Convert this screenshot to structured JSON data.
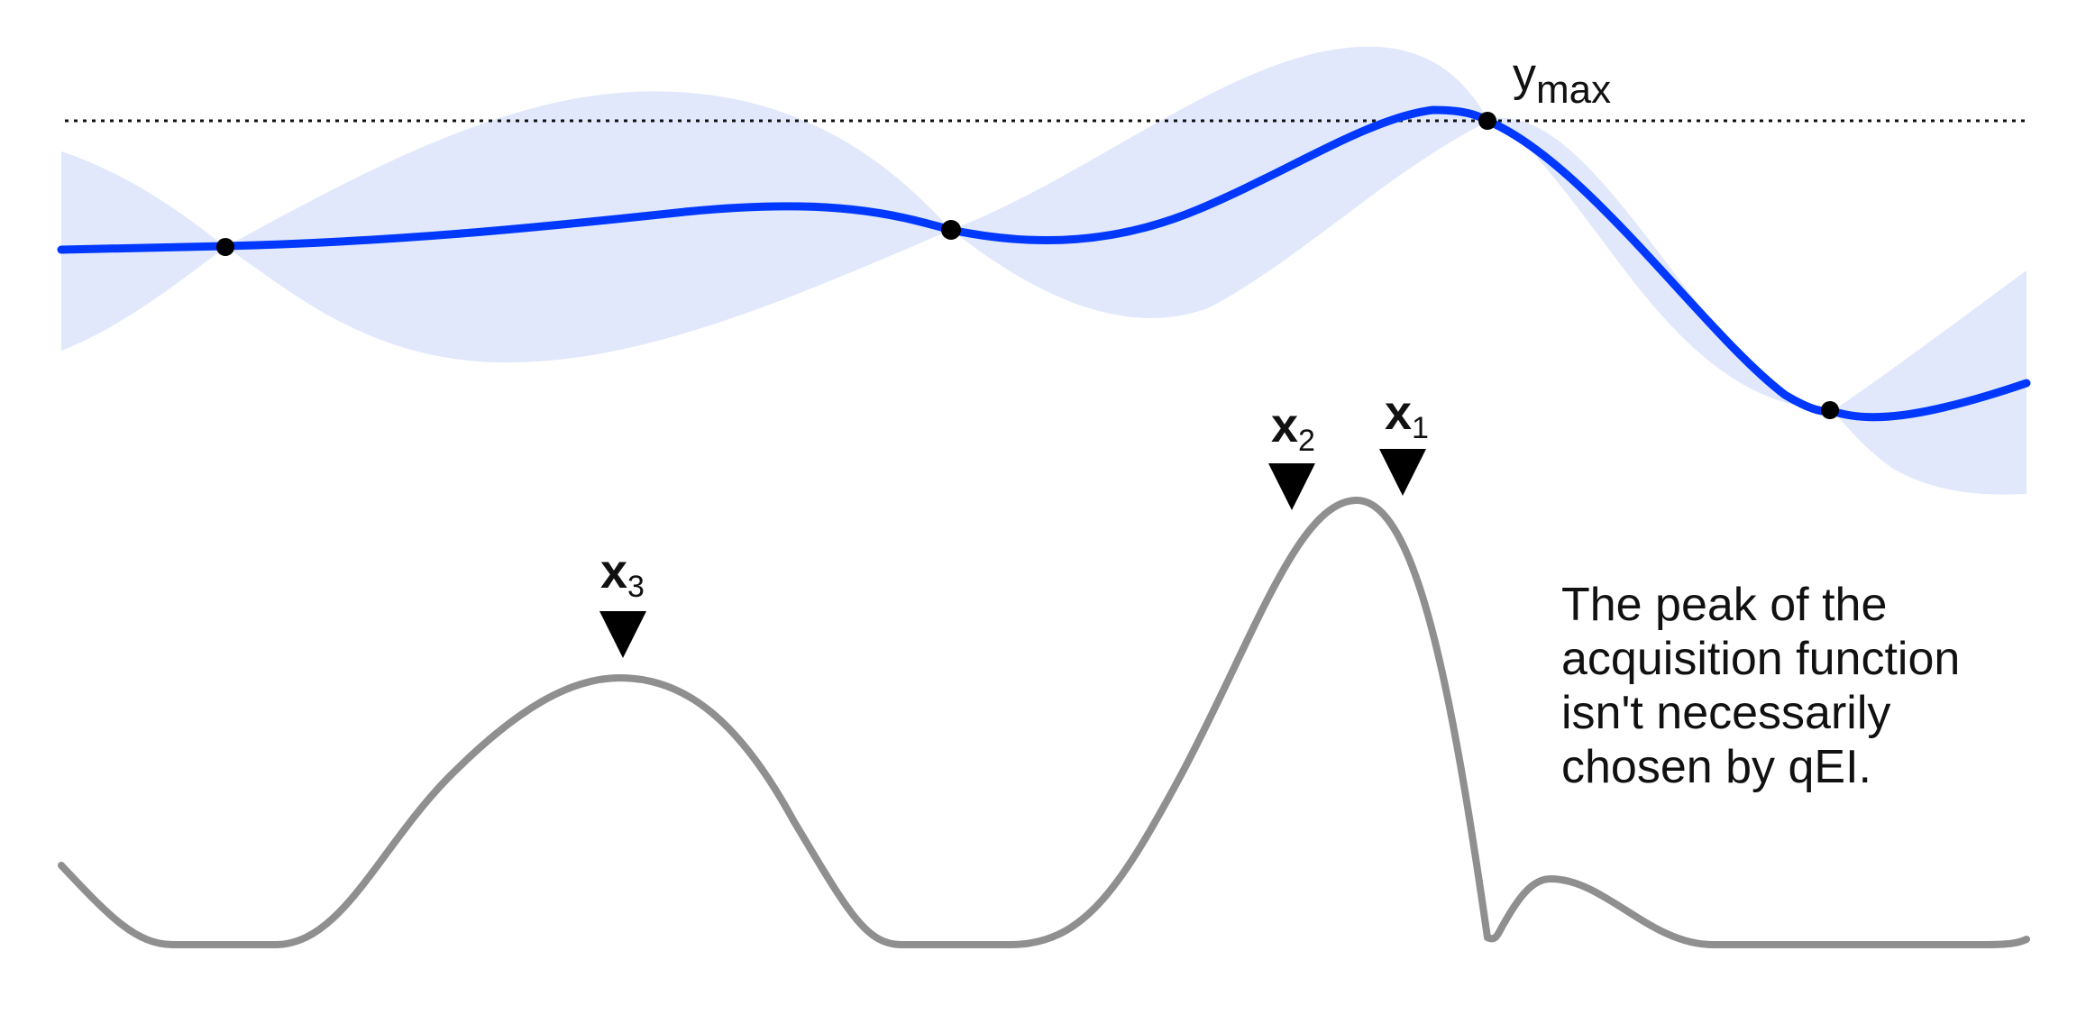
{
  "colors": {
    "mean": "#0038ff",
    "band": "#e1e8fb",
    "acquisition": "#8f8f8f",
    "observation": "#000000",
    "text": "#111111"
  },
  "ymax_label": {
    "main": "y",
    "sub": "max"
  },
  "candidates": [
    {
      "main": "x",
      "sub": "1"
    },
    {
      "main": "x",
      "sub": "2"
    },
    {
      "main": "x",
      "sub": "3"
    }
  ],
  "caption": {
    "lines": [
      "The peak of the",
      "acquisition function",
      "isn't necessarily",
      "chosen by qEI."
    ]
  }
}
